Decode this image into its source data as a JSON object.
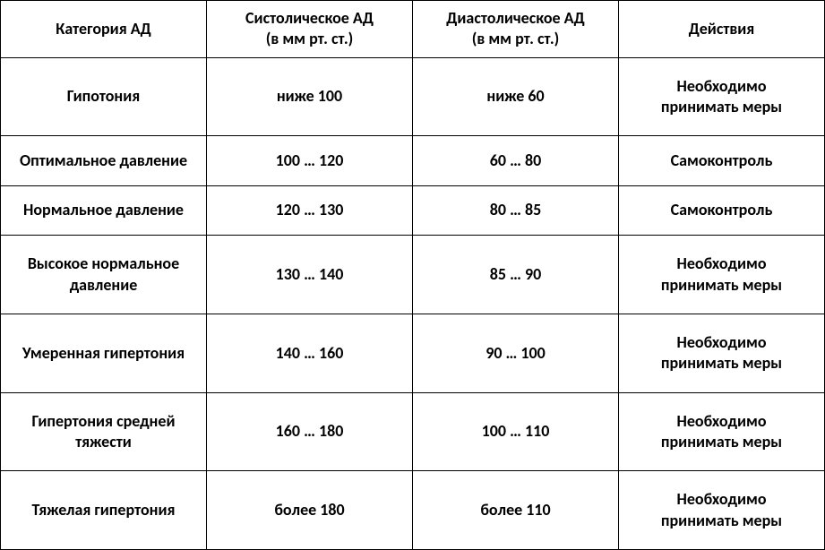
{
  "table": {
    "type": "table",
    "border_color": "#000000",
    "background_color": "#ffffff",
    "text_color": "#000000",
    "font_size_pt": 14,
    "font_weight": "bold",
    "font_family": "Calibri",
    "columns": [
      {
        "label": "Категория АД",
        "width_pct": 25,
        "align": "center"
      },
      {
        "label": "Систолическое АД\n(в мм рт. ст.)",
        "width_pct": 25,
        "align": "center"
      },
      {
        "label": "Диастолическое АД\n(в мм рт. ст.)",
        "width_pct": 25,
        "align": "center"
      },
      {
        "label": "Действия",
        "width_pct": 25,
        "align": "center"
      }
    ],
    "rows": [
      {
        "category": "Гипотония",
        "systolic": "ниже 100",
        "diastolic": "ниже 60",
        "action": "Необходимо\nпринимать меры"
      },
      {
        "category": "Оптимальное давление",
        "systolic": "100 … 120",
        "diastolic": "60 … 80",
        "action": "Самоконтроль"
      },
      {
        "category": "Нормальное давление",
        "systolic": "120 … 130",
        "diastolic": "80 … 85",
        "action": "Самоконтроль"
      },
      {
        "category": "Высокое нормальное\nдавление",
        "systolic": "130 … 140",
        "diastolic": "85 … 90",
        "action": "Необходимо\nпринимать меры"
      },
      {
        "category": "Умеренная гипертония",
        "systolic": "140 … 160",
        "diastolic": "90 … 100",
        "action": "Необходимо\nпринимать меры"
      },
      {
        "category": "Гипертония средней\nтяжести",
        "systolic": "160 … 180",
        "diastolic": "100 … 110",
        "action": "Необходимо\nпринимать меры"
      },
      {
        "category": "Тяжелая гипертония",
        "systolic": "более 180",
        "diastolic": "более 110",
        "action": "Необходимо\nпринимать меры"
      }
    ]
  }
}
